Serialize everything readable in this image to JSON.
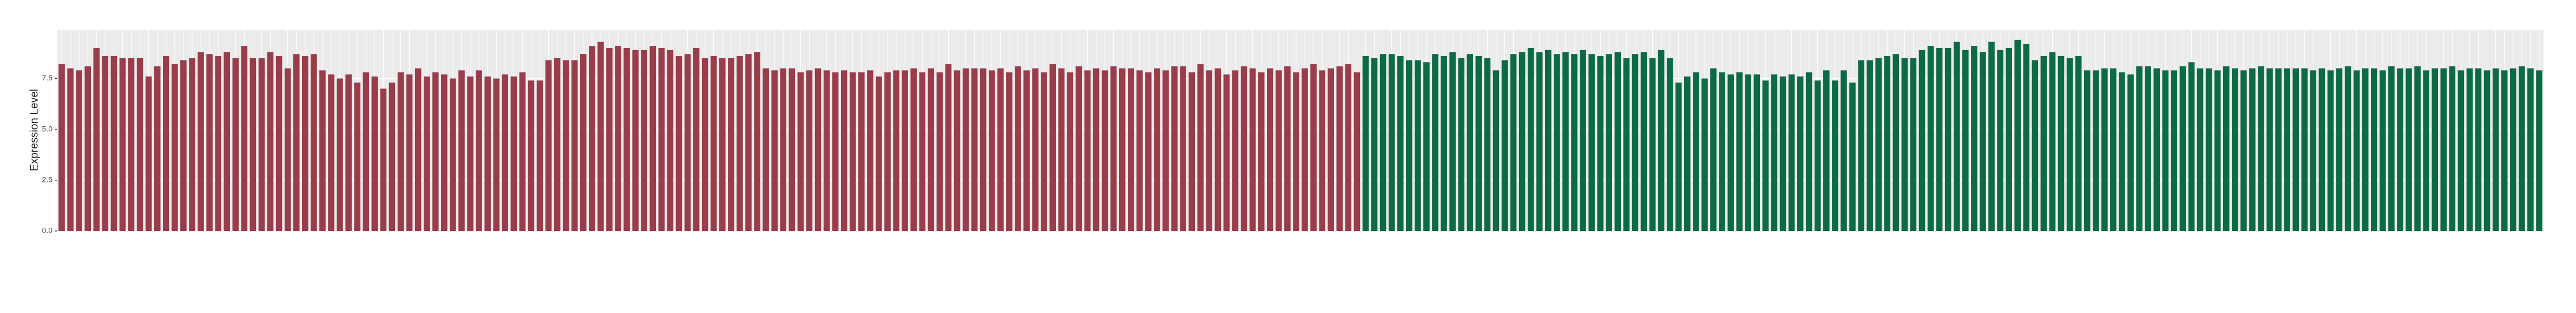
{
  "chart_data": {
    "type": "bar",
    "y_label": "Expression Level",
    "ylim": [
      0,
      9.9
    ],
    "yticks": [
      {
        "value": 0,
        "label": "0.0"
      },
      {
        "value": 2.5,
        "label": "2.5"
      },
      {
        "value": 5,
        "label": "5.0"
      },
      {
        "value": 7.5,
        "label": "7.5"
      }
    ],
    "grid": true,
    "series": [
      {
        "color": "#9a3d4b",
        "values": [
          8.2,
          8.0,
          7.9,
          8.1,
          9.0,
          8.6,
          8.6,
          8.5,
          8.5,
          8.5,
          7.6,
          8.1,
          8.6,
          8.2,
          8.4,
          8.5,
          8.8,
          8.7,
          8.6,
          8.8,
          8.5,
          9.1,
          8.5,
          8.5,
          8.8,
          8.6,
          8.0,
          8.7,
          8.6,
          8.7,
          7.9,
          7.7,
          7.5,
          7.7,
          7.3,
          7.8,
          7.6,
          7.0,
          7.3,
          7.8,
          7.7,
          8.0,
          7.6,
          7.8,
          7.7,
          7.5,
          7.9,
          7.6,
          7.9,
          7.6,
          7.5,
          7.7,
          7.6,
          7.8,
          7.4,
          7.4,
          8.4,
          8.5,
          8.4,
          8.4,
          8.7,
          9.1,
          9.3,
          9.0,
          9.1,
          9.0,
          8.9,
          8.9,
          9.1,
          9.0,
          8.9,
          8.6,
          8.7,
          9.0,
          8.5,
          8.6,
          8.5,
          8.5,
          8.6,
          8.7,
          8.8,
          8.0,
          7.9,
          8.0,
          8.0,
          7.8,
          7.9,
          8.0,
          7.9,
          7.8,
          7.9,
          7.8,
          7.8,
          7.9,
          7.6,
          7.8,
          7.9,
          7.9,
          8.0,
          7.8,
          8.0,
          7.8,
          8.2,
          7.9,
          8.0,
          8.0,
          8.0,
          7.9,
          8.0,
          7.8,
          8.1,
          7.9,
          8.0,
          7.8,
          8.2,
          8.0,
          7.8,
          8.1,
          7.9,
          8.0,
          7.9,
          8.1,
          8.0,
          8.0,
          7.9,
          7.8,
          8.0,
          7.9,
          8.1,
          8.1,
          7.8,
          8.2,
          7.9,
          8.0,
          7.7,
          7.9,
          8.1,
          8.0,
          7.8,
          8.0,
          7.9,
          8.1,
          7.8,
          8.0,
          8.2,
          7.9,
          8.0,
          8.1,
          8.2,
          7.8
        ]
      },
      {
        "color": "#0d6a46",
        "values": [
          8.6,
          8.5,
          8.7,
          8.7,
          8.6,
          8.4,
          8.4,
          8.3,
          8.7,
          8.6,
          8.8,
          8.5,
          8.7,
          8.6,
          8.5,
          7.9,
          8.4,
          8.7,
          8.8,
          9.0,
          8.8,
          8.9,
          8.7,
          8.8,
          8.7,
          8.9,
          8.7,
          8.6,
          8.7,
          8.8,
          8.5,
          8.7,
          8.8,
          8.5,
          8.9,
          8.5,
          7.3,
          7.6,
          7.8,
          7.5,
          8.0,
          7.8,
          7.7,
          7.8,
          7.7,
          7.7,
          7.4,
          7.7,
          7.6,
          7.7,
          7.6,
          7.8,
          7.4,
          7.9,
          7.4,
          7.9,
          7.3,
          8.4,
          8.4,
          8.5,
          8.6,
          8.7,
          8.5,
          8.5,
          8.9,
          9.1,
          9.0,
          9.0,
          9.3,
          8.9,
          9.1,
          8.8,
          9.3,
          8.9,
          9.0,
          9.4,
          9.2,
          8.4,
          8.6,
          8.8,
          8.6,
          8.5,
          8.6,
          7.9,
          7.9,
          8.0,
          8.0,
          7.8,
          7.7,
          8.1,
          8.1,
          8.0,
          7.9,
          7.9,
          8.1,
          8.3,
          8.0,
          8.0,
          7.9,
          8.1,
          8.0,
          7.9,
          8.0,
          8.1,
          8.0,
          8.0,
          8.0,
          8.0,
          8.0,
          7.9,
          8.0,
          7.9,
          8.0,
          8.1,
          7.9,
          8.0,
          8.0,
          7.9,
          8.1,
          8.0,
          8.0,
          8.1,
          7.9,
          8.0,
          8.0,
          8.1,
          7.9,
          8.0,
          8.0,
          7.9,
          8.0,
          7.9,
          8.0,
          8.1,
          8.0,
          7.9
        ]
      }
    ]
  }
}
